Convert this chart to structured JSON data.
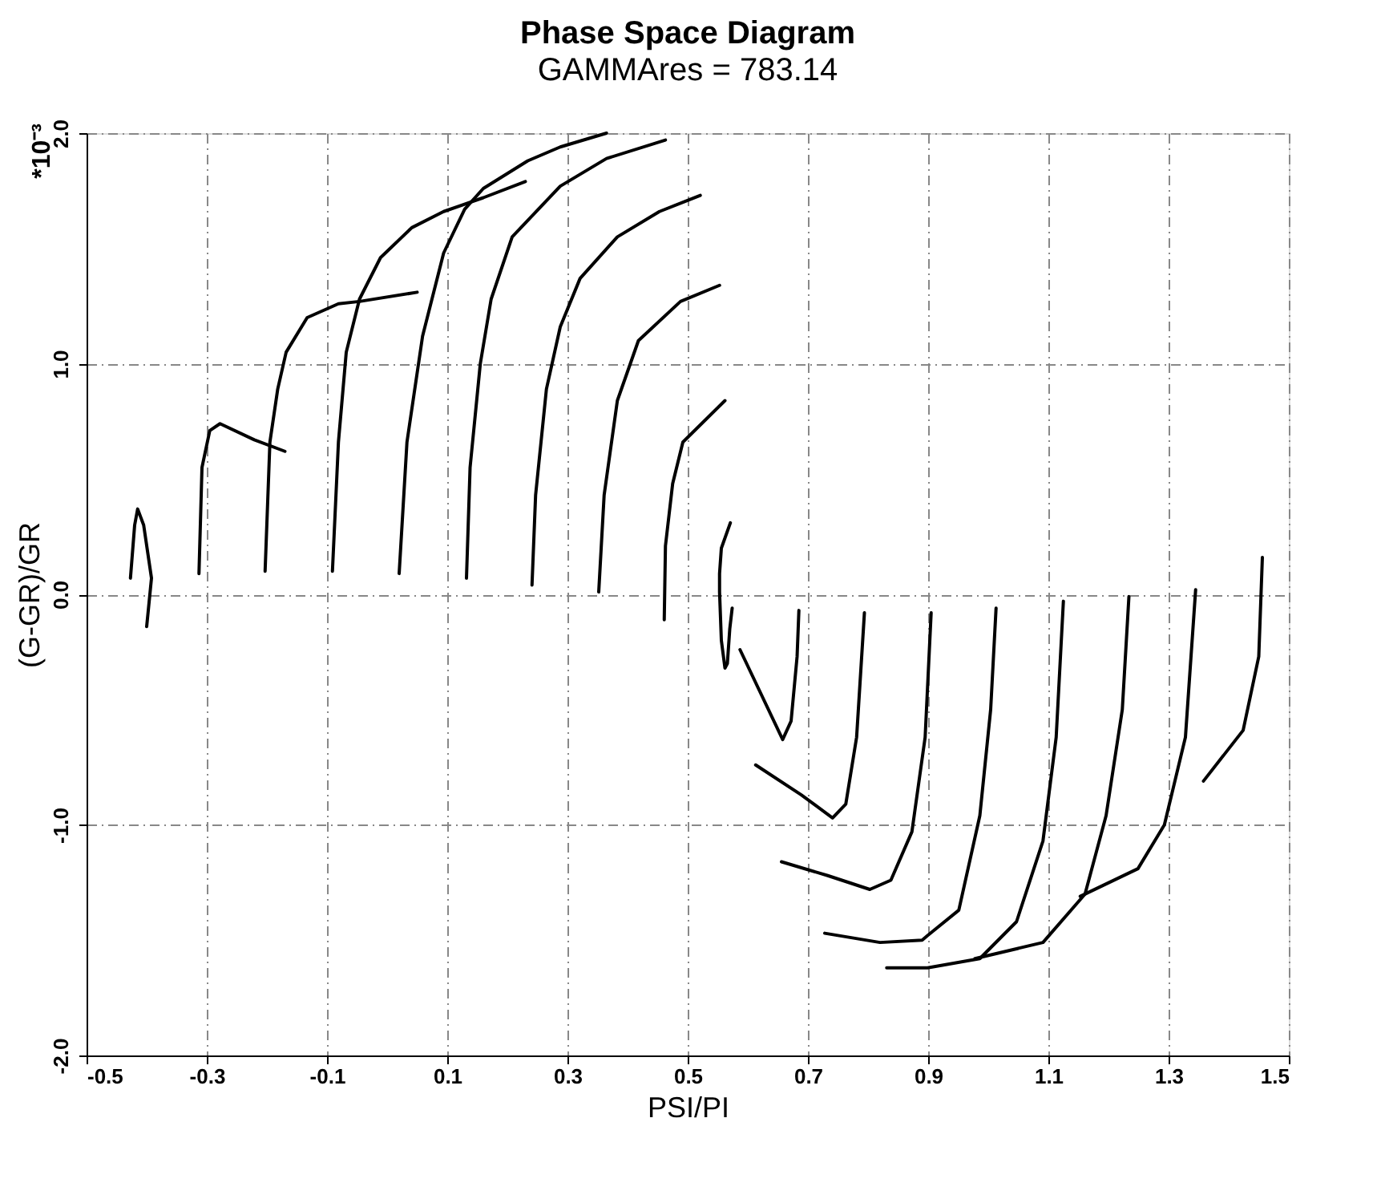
{
  "chart_data": {
    "type": "line",
    "title": "Phase Space Diagram",
    "subtitle": "GAMMAres = 783.14",
    "xlabel": "PSI/PI",
    "ylabel": "(G-GR)/GR",
    "annotations": [
      "*10⁻³"
    ],
    "xlim": [
      -0.5,
      1.5
    ],
    "xticks": [
      -0.5,
      -0.3,
      -0.1,
      0.1,
      0.3,
      0.5,
      0.7,
      0.9,
      1.1,
      1.3,
      1.5
    ],
    "ylim": [
      -2.0,
      2.0
    ],
    "yticks": [
      {
        "value": -2,
        "label": "-2.0"
      },
      {
        "value": -1,
        "label": "-1.0"
      },
      {
        "value": 0,
        "label": "0.0"
      },
      {
        "value": 1,
        "label": "1.0"
      },
      {
        "value": 2,
        "label": "2.0"
      }
    ],
    "grid": true,
    "marker": "none",
    "line_style": "solid",
    "series": [
      {
        "color": "#000000",
        "x": [
          -0.427,
          -0.42,
          -0.415,
          -0.405,
          -0.392,
          -0.4
        ],
        "values": [
          0.07,
          0.3,
          0.37,
          0.3,
          0.07,
          -0.14
        ]
      },
      {
        "color": "#000000",
        "x": [
          -0.313,
          -0.308,
          -0.295,
          -0.278,
          -0.221,
          -0.17
        ],
        "values": [
          0.09,
          0.55,
          0.71,
          0.74,
          0.67,
          0.62
        ]
      },
      {
        "color": "#000000",
        "x": [
          -0.203,
          -0.195,
          -0.182,
          -0.168,
          -0.133,
          -0.081,
          -0.046,
          0.05
        ],
        "values": [
          0.1,
          0.66,
          0.89,
          1.05,
          1.2,
          1.26,
          1.27,
          1.31
        ]
      },
      {
        "color": "#000000",
        "x": [
          -0.091,
          -0.081,
          -0.068,
          -0.046,
          -0.011,
          0.041,
          0.094,
          0.16,
          0.23
        ],
        "values": [
          0.1,
          0.66,
          1.05,
          1.28,
          1.46,
          1.59,
          1.66,
          1.72,
          1.79
        ]
      },
      {
        "color": "#000000",
        "x": [
          0.02,
          0.033,
          0.059,
          0.094,
          0.129,
          0.16,
          0.234,
          0.288,
          0.365
        ],
        "values": [
          0.09,
          0.66,
          1.12,
          1.48,
          1.67,
          1.76,
          1.88,
          1.94,
          2.0
        ]
      },
      {
        "color": "#000000",
        "x": [
          0.132,
          0.138,
          0.155,
          0.173,
          0.208,
          0.288,
          0.365,
          0.463
        ],
        "values": [
          0.07,
          0.55,
          1.0,
          1.28,
          1.55,
          1.77,
          1.89,
          1.97
        ]
      },
      {
        "color": "#000000",
        "x": [
          0.241,
          0.247,
          0.265,
          0.288,
          0.321,
          0.383,
          0.453,
          0.521
        ],
        "values": [
          0.04,
          0.43,
          0.89,
          1.16,
          1.37,
          1.55,
          1.66,
          1.73
        ]
      },
      {
        "color": "#000000",
        "x": [
          0.352,
          0.361,
          0.383,
          0.418,
          0.488,
          0.553
        ],
        "values": [
          0.01,
          0.43,
          0.84,
          1.1,
          1.27,
          1.34
        ]
      },
      {
        "color": "#000000",
        "x": [
          0.461,
          0.463,
          0.475,
          0.492,
          0.562
        ],
        "values": [
          -0.11,
          0.21,
          0.48,
          0.66,
          0.84
        ]
      },
      {
        "color": "#000000",
        "x": [
          0.571,
          0.556,
          0.553,
          0.553,
          0.556,
          0.562,
          0.566,
          0.57,
          0.574
        ],
        "values": [
          0.31,
          0.2,
          0.09,
          0.01,
          -0.2,
          -0.32,
          -0.3,
          -0.15,
          -0.06
        ]
      },
      {
        "color": "#000000",
        "x": [
          0.587,
          0.658,
          0.672,
          0.682,
          0.685
        ],
        "values": [
          -0.24,
          -0.63,
          -0.55,
          -0.27,
          -0.07
        ]
      },
      {
        "color": "#000000",
        "x": [
          0.613,
          0.689,
          0.741,
          0.763,
          0.781,
          0.794
        ],
        "values": [
          -0.74,
          -0.87,
          -0.97,
          -0.91,
          -0.62,
          -0.08
        ]
      },
      {
        "color": "#000000",
        "x": [
          0.656,
          0.733,
          0.803,
          0.838,
          0.873,
          0.895,
          0.905
        ],
        "values": [
          -1.16,
          -1.22,
          -1.28,
          -1.24,
          -1.03,
          -0.62,
          -0.08
        ]
      },
      {
        "color": "#000000",
        "x": [
          0.728,
          0.82,
          0.89,
          0.899,
          0.951,
          0.986,
          1.004,
          1.013
        ],
        "values": [
          -1.47,
          -1.51,
          -1.5,
          -1.48,
          -1.37,
          -0.96,
          -0.5,
          -0.06
        ]
      },
      {
        "color": "#000000",
        "x": [
          0.831,
          0.89,
          0.899,
          0.986,
          1.047,
          1.091,
          1.113,
          1.125
        ],
        "values": [
          -1.62,
          -1.62,
          -1.62,
          -1.58,
          -1.42,
          -1.07,
          -0.62,
          -0.03
        ]
      },
      {
        "color": "#000000",
        "x": [
          0.978,
          1.091,
          1.161,
          1.196,
          1.223,
          1.234
        ],
        "values": [
          -1.58,
          -1.51,
          -1.3,
          -0.96,
          -0.5,
          -0.01
        ]
      },
      {
        "color": "#000000",
        "x": [
          1.153,
          1.249,
          1.293,
          1.328,
          1.345
        ],
        "values": [
          -1.31,
          -1.19,
          -1.0,
          -0.62,
          0.02
        ]
      },
      {
        "color": "#000000",
        "x": [
          1.358,
          1.424,
          1.45,
          1.456
        ],
        "values": [
          -0.81,
          -0.59,
          -0.27,
          0.16
        ]
      }
    ]
  }
}
